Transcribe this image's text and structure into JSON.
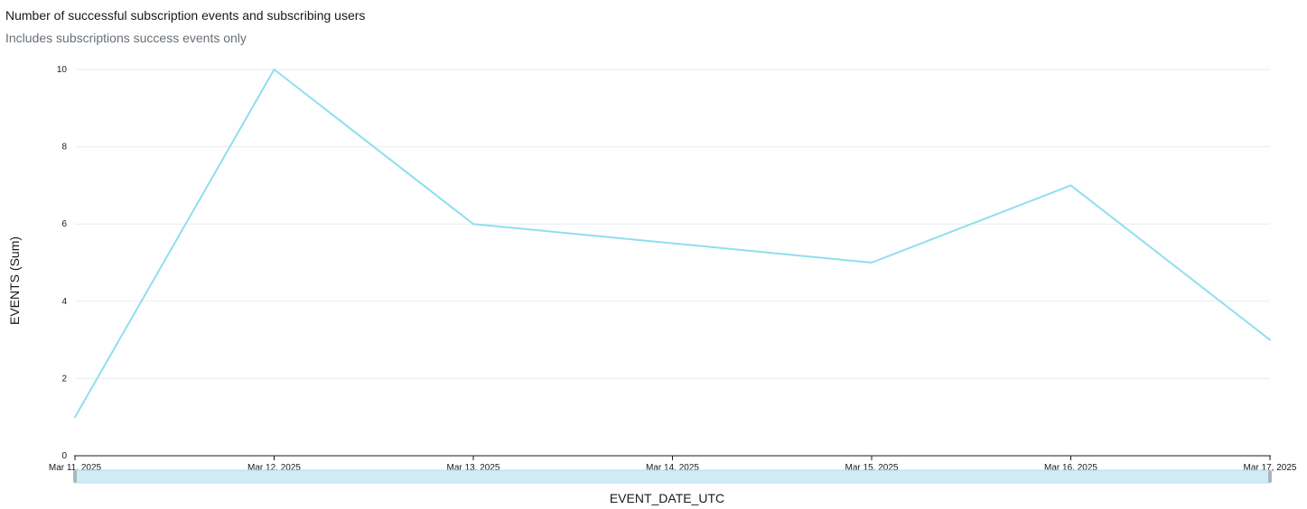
{
  "header": {
    "title": "Number of successful subscription events and subscribing users",
    "subtitle": "Includes subscriptions success events only"
  },
  "chart_data": {
    "type": "line",
    "x": [
      "Mar 11, 2025",
      "Mar 12, 2025",
      "Mar 13, 2025",
      "Mar 14, 2025",
      "Mar 15, 2025",
      "Mar 16, 2025",
      "Mar 17, 2025"
    ],
    "x_ticks": [
      "Mar 11, 2025",
      "Mar 12, 2025",
      "Mar 13, 2025",
      "Mar 14, 2025",
      "Mar 15, 2025",
      "Mar 16, 2025",
      "Mar 17, 2025"
    ],
    "series": [
      {
        "points": [
          {
            "x": "Mar 11, 2025",
            "y": 1
          },
          {
            "x": "Mar 12, 2025",
            "y": 10
          },
          {
            "x": "Mar 13, 2025",
            "y": 6
          },
          {
            "x": "Mar 15, 2025",
            "y": 5
          },
          {
            "x": "Mar 16, 2025",
            "y": 7
          },
          {
            "x": "Mar 17, 2025",
            "y": 3
          }
        ],
        "color": "#8fdfee"
      }
    ],
    "xlabel": "EVENT_DATE_UTC",
    "ylabel": "EVENTS (Sum)",
    "ylim": [
      0,
      10
    ],
    "y_ticks": [
      "0",
      "2",
      "4",
      "6",
      "8",
      "10"
    ],
    "grid": true,
    "legend": "none",
    "range_slider": true
  },
  "colors": {
    "gridline": "#e9ebed",
    "axis": "#16191f",
    "slider_fill": "#d1ebf7",
    "slider_border": "#b8dcee",
    "slider_handle": "#aab7b8"
  }
}
